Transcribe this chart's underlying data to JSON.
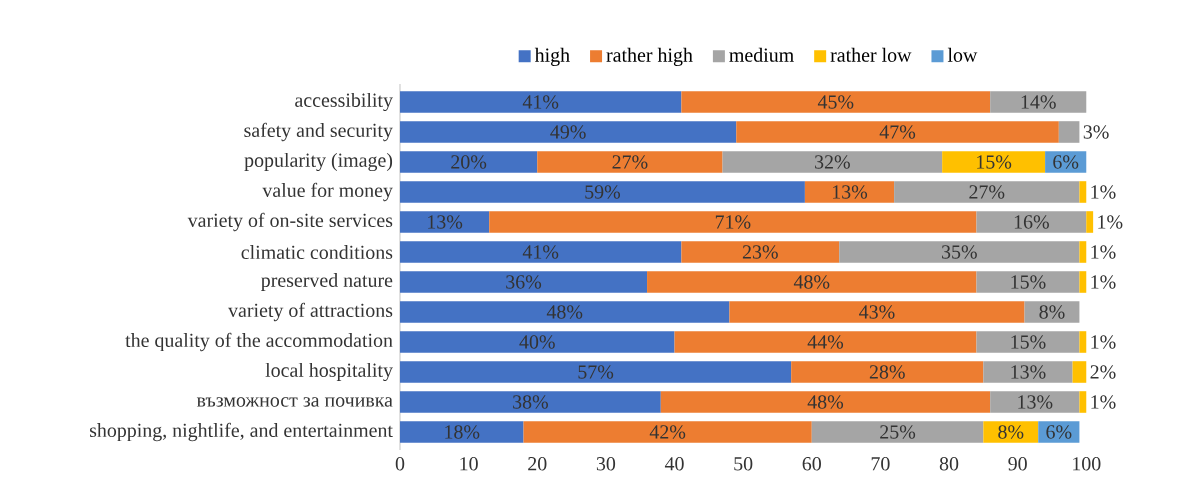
{
  "chart_data": {
    "type": "bar",
    "orientation": "horizontal",
    "stacked": true,
    "legend": "top",
    "categories": [
      "accessibility",
      "safety and security",
      "popularity (image)",
      "value for money",
      "variety of on-site services",
      "climatic conditions",
      "preserved nature",
      "variety of attractions",
      "the quality of the accommodation",
      "local hospitality",
      "възможност за почивка",
      "shopping, nightlife, and entertainment"
    ],
    "series": [
      {
        "name": "high",
        "color": "#4472c4",
        "values": [
          41,
          49,
          20,
          59,
          13,
          41,
          36,
          48,
          40,
          57,
          38,
          18
        ],
        "value_labels": [
          "41%",
          "49%",
          "20%",
          "59%",
          "13%",
          "41%",
          "36%",
          "48%",
          "40%",
          "57%",
          "38%",
          "18%"
        ]
      },
      {
        "name": "rather high",
        "color": "#ed7d31",
        "values": [
          45,
          47,
          27,
          13,
          71,
          23,
          48,
          43,
          44,
          28,
          48,
          42
        ],
        "value_labels": [
          "45%",
          "47%",
          "27%",
          "13%",
          "71%",
          "23%",
          "48%",
          "43%",
          "44%",
          "28%",
          "48%",
          "42%"
        ]
      },
      {
        "name": "medium",
        "color": "#a5a5a5",
        "values": [
          14,
          3,
          32,
          27,
          16,
          35,
          15,
          8,
          15,
          13,
          13,
          25
        ],
        "value_labels": [
          "14%",
          "3%",
          "32%",
          "27%",
          "16%",
          "35%",
          "15%",
          "8%",
          "15%",
          "13%",
          "13%",
          "25%"
        ]
      },
      {
        "name": "rather low",
        "color": "#ffc000",
        "values": [
          null,
          null,
          15,
          1,
          1,
          1,
          1,
          null,
          1,
          2,
          1,
          8
        ],
        "value_labels": [
          null,
          null,
          "15%",
          "1%",
          "1%",
          "1%",
          "1%",
          null,
          "1%",
          "2%",
          "1%",
          "8%"
        ]
      },
      {
        "name": "low",
        "color": "#5b9bd5",
        "values": [
          null,
          null,
          6,
          null,
          null,
          null,
          null,
          null,
          null,
          null,
          null,
          6
        ],
        "value_labels": [
          null,
          null,
          "6%",
          null,
          null,
          null,
          null,
          null,
          null,
          null,
          null,
          "6%"
        ]
      }
    ],
    "xlim": [
      0,
      102
    ],
    "xticks": [
      0,
      10,
      20,
      30,
      40,
      50,
      60,
      70,
      80,
      90,
      100
    ]
  }
}
